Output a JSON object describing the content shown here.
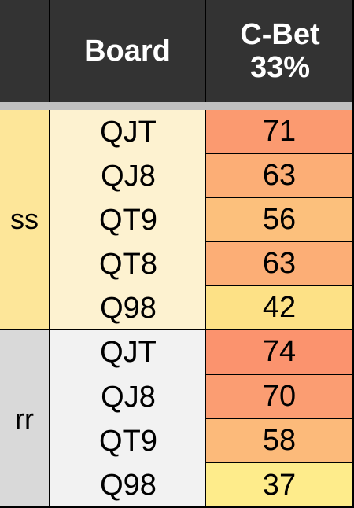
{
  "header": {
    "col1": "",
    "col2": "Board",
    "col3_line1": "C-Bet",
    "col3_line2": "33%"
  },
  "groups": [
    {
      "label": "ss",
      "label_color": "#fde699",
      "board_color": "#fdf2d0",
      "rows": [
        {
          "board": "QJT",
          "value": "71",
          "color": "#fb9a70"
        },
        {
          "board": "QJ8",
          "value": "63",
          "color": "#fcae76"
        },
        {
          "board": "QT9",
          "value": "56",
          "color": "#fcc07c"
        },
        {
          "board": "QT8",
          "value": "63",
          "color": "#fcae76"
        },
        {
          "board": "Q98",
          "value": "42",
          "color": "#fde186"
        }
      ]
    },
    {
      "label": "rr",
      "label_color": "#d9d9d9",
      "board_color": "#f2f2f2",
      "rows": [
        {
          "board": "QJT",
          "value": "74",
          "color": "#fb936e"
        },
        {
          "board": "QJ8",
          "value": "70",
          "color": "#fb9d72"
        },
        {
          "board": "QT9",
          "value": "58",
          "color": "#fcba7a"
        },
        {
          "board": "Q98",
          "value": "37",
          "color": "#feec8b"
        }
      ]
    }
  ]
}
